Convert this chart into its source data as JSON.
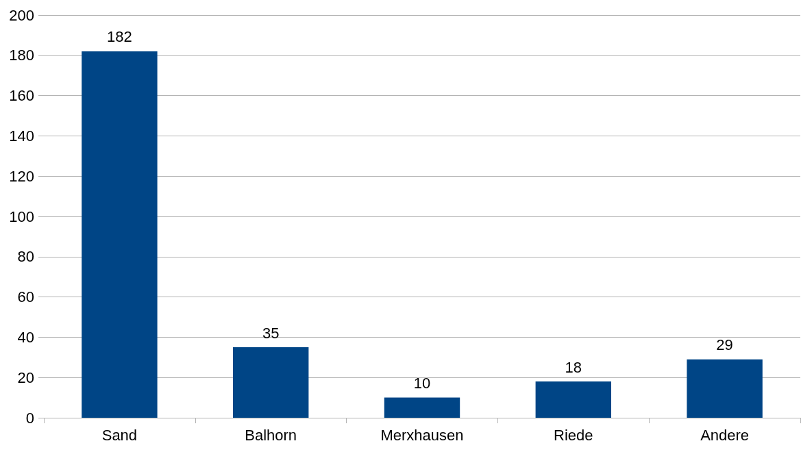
{
  "chart_data": {
    "type": "bar",
    "categories": [
      "Sand",
      "Balhorn",
      "Merxhausen",
      "Riede",
      "Andere"
    ],
    "values": [
      182,
      35,
      10,
      18,
      29
    ],
    "color": "#004586",
    "ylim": [
      0,
      200
    ],
    "yticks": [
      0,
      20,
      40,
      60,
      80,
      100,
      120,
      140,
      160,
      180,
      200
    ],
    "grid": "y",
    "data_labels": true
  }
}
